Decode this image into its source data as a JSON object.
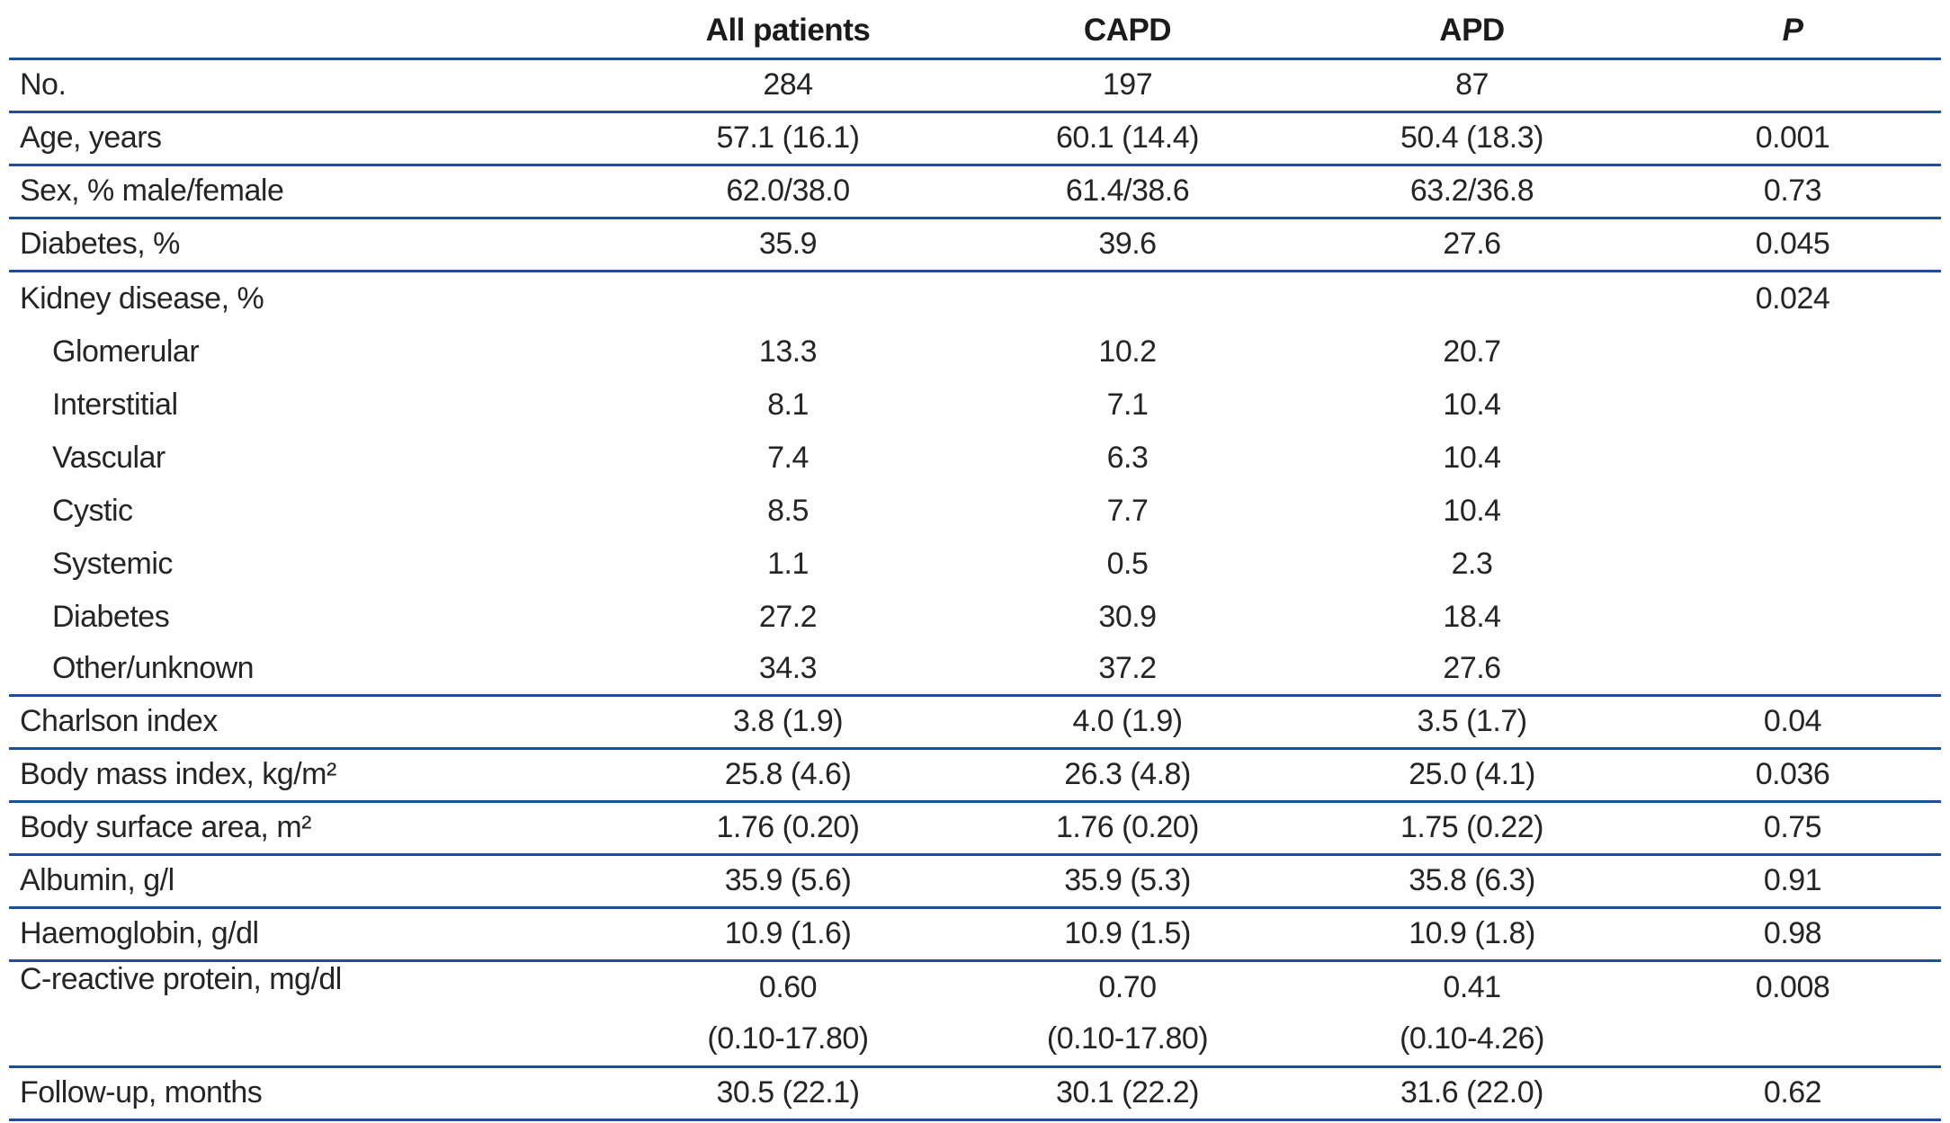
{
  "colors": {
    "rule_blue": "#1c4f9c",
    "text": "#252525"
  },
  "table": {
    "columns": [
      "",
      "All patients",
      "CAPD",
      "APD",
      "P"
    ],
    "rows": [
      {
        "label": "No.",
        "indent": false,
        "rule_below": true,
        "values": [
          "284",
          "197",
          "87",
          ""
        ]
      },
      {
        "label": "Age, years",
        "indent": false,
        "rule_below": true,
        "values": [
          "57.1 (16.1)",
          "60.1 (14.4)",
          "50.4 (18.3)",
          "0.001"
        ]
      },
      {
        "label": "Sex, % male/female",
        "indent": false,
        "rule_below": true,
        "values": [
          "62.0/38.0",
          "61.4/38.6",
          "63.2/36.8",
          "0.73"
        ]
      },
      {
        "label": "Diabetes, %",
        "indent": false,
        "rule_below": true,
        "values": [
          "35.9",
          "39.6",
          "27.6",
          "0.045"
        ]
      },
      {
        "label": "Kidney disease, %",
        "indent": false,
        "rule_below": false,
        "values": [
          "",
          "",
          "",
          "0.024"
        ]
      },
      {
        "label": "Glomerular",
        "indent": true,
        "rule_below": false,
        "values": [
          "13.3",
          "10.2",
          "20.7",
          ""
        ]
      },
      {
        "label": "Interstitial",
        "indent": true,
        "rule_below": false,
        "values": [
          "8.1",
          "7.1",
          "10.4",
          ""
        ]
      },
      {
        "label": "Vascular",
        "indent": true,
        "rule_below": false,
        "values": [
          "7.4",
          "6.3",
          "10.4",
          ""
        ]
      },
      {
        "label": "Cystic",
        "indent": true,
        "rule_below": false,
        "values": [
          "8.5",
          "7.7",
          "10.4",
          ""
        ]
      },
      {
        "label": "Systemic",
        "indent": true,
        "rule_below": false,
        "values": [
          "1.1",
          "0.5",
          "2.3",
          ""
        ]
      },
      {
        "label": "Diabetes",
        "indent": true,
        "rule_below": false,
        "values": [
          "27.2",
          "30.9",
          "18.4",
          ""
        ]
      },
      {
        "label": "Other/unknown",
        "indent": true,
        "rule_below": true,
        "values": [
          "34.3",
          "37.2",
          "27.6",
          ""
        ]
      },
      {
        "label": "Charlson index",
        "indent": false,
        "rule_below": true,
        "values": [
          "3.8 (1.9)",
          "4.0 (1.9)",
          "3.5 (1.7)",
          "0.04"
        ]
      },
      {
        "label": "Body mass index, kg/m²",
        "indent": false,
        "rule_below": true,
        "values": [
          "25.8 (4.6)",
          "26.3 (4.8)",
          "25.0 (4.1)",
          "0.036"
        ]
      },
      {
        "label": "Body surface area, m²",
        "indent": false,
        "rule_below": true,
        "values": [
          "1.76 (0.20)",
          "1.76 (0.20)",
          "1.75 (0.22)",
          "0.75"
        ]
      },
      {
        "label": "Albumin, g/l",
        "indent": false,
        "rule_below": true,
        "values": [
          "35.9 (5.6)",
          "35.9 (5.3)",
          "35.8 (6.3)",
          "0.91"
        ]
      },
      {
        "label": "Haemoglobin, g/dl",
        "indent": false,
        "rule_below": true,
        "values": [
          "10.9 (1.6)",
          "10.9 (1.5)",
          "10.9 (1.8)",
          "0.98"
        ]
      },
      {
        "label": "C-reactive protein, mg/dl",
        "indent": false,
        "rule_below": true,
        "values": [
          "0.60",
          "0.70",
          "0.41",
          "0.008"
        ],
        "values_line2": [
          "(0.10-17.80)",
          "(0.10-17.80)",
          "(0.10-4.26)",
          ""
        ]
      },
      {
        "label": "Follow-up, months",
        "indent": false,
        "rule_below": true,
        "values": [
          "30.5 (22.1)",
          "30.1 (22.2)",
          "31.6 (22.0)",
          "0.62"
        ]
      }
    ]
  }
}
